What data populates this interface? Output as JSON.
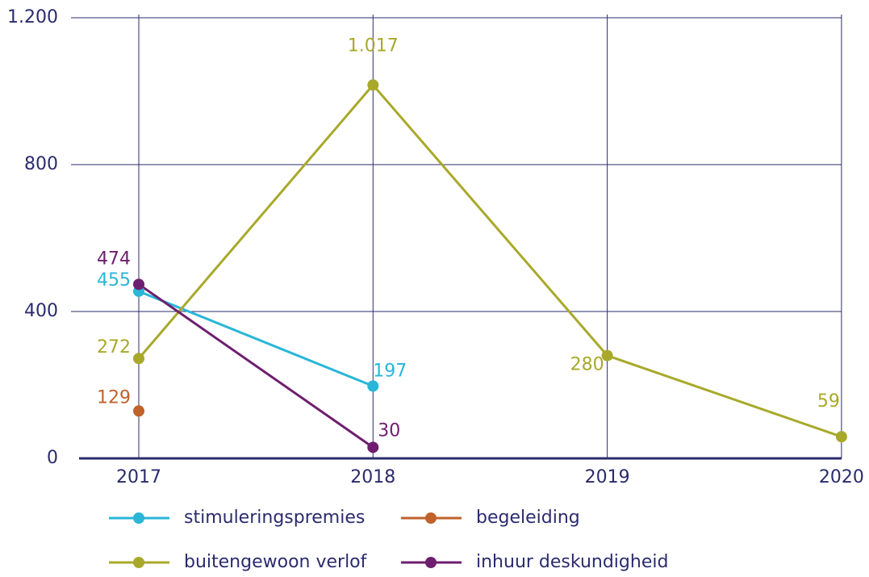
{
  "chart_data": {
    "type": "line",
    "categories": [
      "2017",
      "2018",
      "2019",
      "2020"
    ],
    "series": [
      {
        "name": "stimuleringspremies",
        "color": "#29b6d8",
        "values": [
          455,
          197,
          null,
          null
        ]
      },
      {
        "name": "begeleiding",
        "color": "#c0622a",
        "values": [
          129,
          null,
          null,
          null
        ]
      },
      {
        "name": "buitengewoon verlof",
        "color": "#a8a92a",
        "values": [
          272,
          1017,
          280,
          59
        ],
        "value_labels": [
          "272",
          "1.017",
          "280",
          "59"
        ]
      },
      {
        "name": "inhuur deskundigheid",
        "color": "#6e1e6e",
        "values": [
          474,
          30,
          null,
          null
        ]
      }
    ],
    "ylim": [
      0,
      1200
    ],
    "yticks": [
      0,
      400,
      800,
      {
        "value": 1200,
        "label": "1.200"
      }
    ],
    "grid": true
  }
}
